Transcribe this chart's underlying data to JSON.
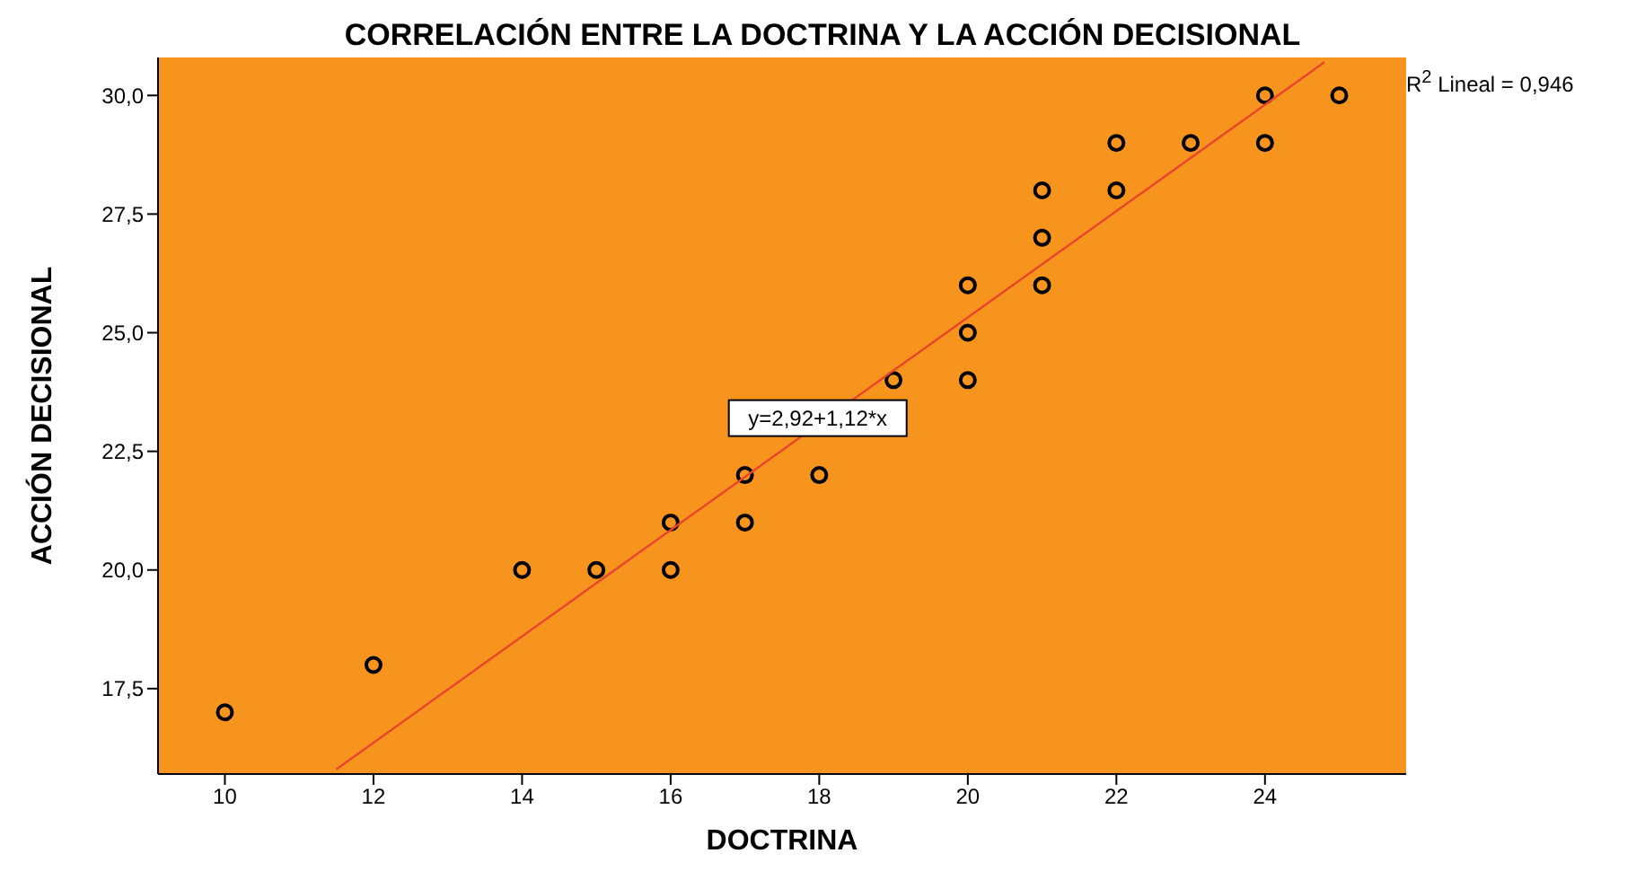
{
  "chart_data": {
    "type": "scatter",
    "title": "CORRELACIÓN ENTRE LA DOCTRINA Y LA ACCIÓN DECISIONAL",
    "xlabel": "DOCTRINA",
    "ylabel": "ACCIÓN DECISIONAL",
    "series": [
      {
        "color": "#000000",
        "marker": "circle",
        "x": [
          10,
          12,
          14,
          15,
          16,
          16,
          17,
          17,
          18,
          19,
          20,
          20,
          20,
          21,
          21,
          21,
          22,
          22,
          23,
          24,
          24,
          25
        ],
        "values": [
          17,
          18,
          20,
          20,
          21,
          20,
          22,
          21,
          22,
          24,
          26,
          25,
          24,
          28,
          27,
          26,
          29,
          28,
          29,
          30,
          29,
          30
        ]
      },
      {
        "type": "line",
        "color": "#e8452c",
        "marker": "none",
        "x": [
          11.5,
          24.8
        ],
        "values": [
          15.8,
          30.7
        ]
      }
    ],
    "xlim": [
      9.1,
      25.9
    ],
    "ylim": [
      15.7,
      30.8
    ],
    "xticks": [
      10,
      12,
      14,
      16,
      18,
      20,
      22,
      24
    ],
    "yticks": [
      {
        "value": 17.5,
        "label": "17,5"
      },
      {
        "value": 20,
        "label": "20,0"
      },
      {
        "value": 22.5,
        "label": "22,5"
      },
      {
        "value": 25,
        "label": "25,0"
      },
      {
        "value": 27.5,
        "label": "27,5"
      },
      {
        "value": 30,
        "label": "30,0"
      }
    ],
    "grid": false,
    "legend": false,
    "annotations": [
      {
        "text": "y=2,92+1,12*x",
        "x": 17.98,
        "y": 23.2
      },
      "R$^{2}$ Lineal = 0,946"
    ]
  }
}
